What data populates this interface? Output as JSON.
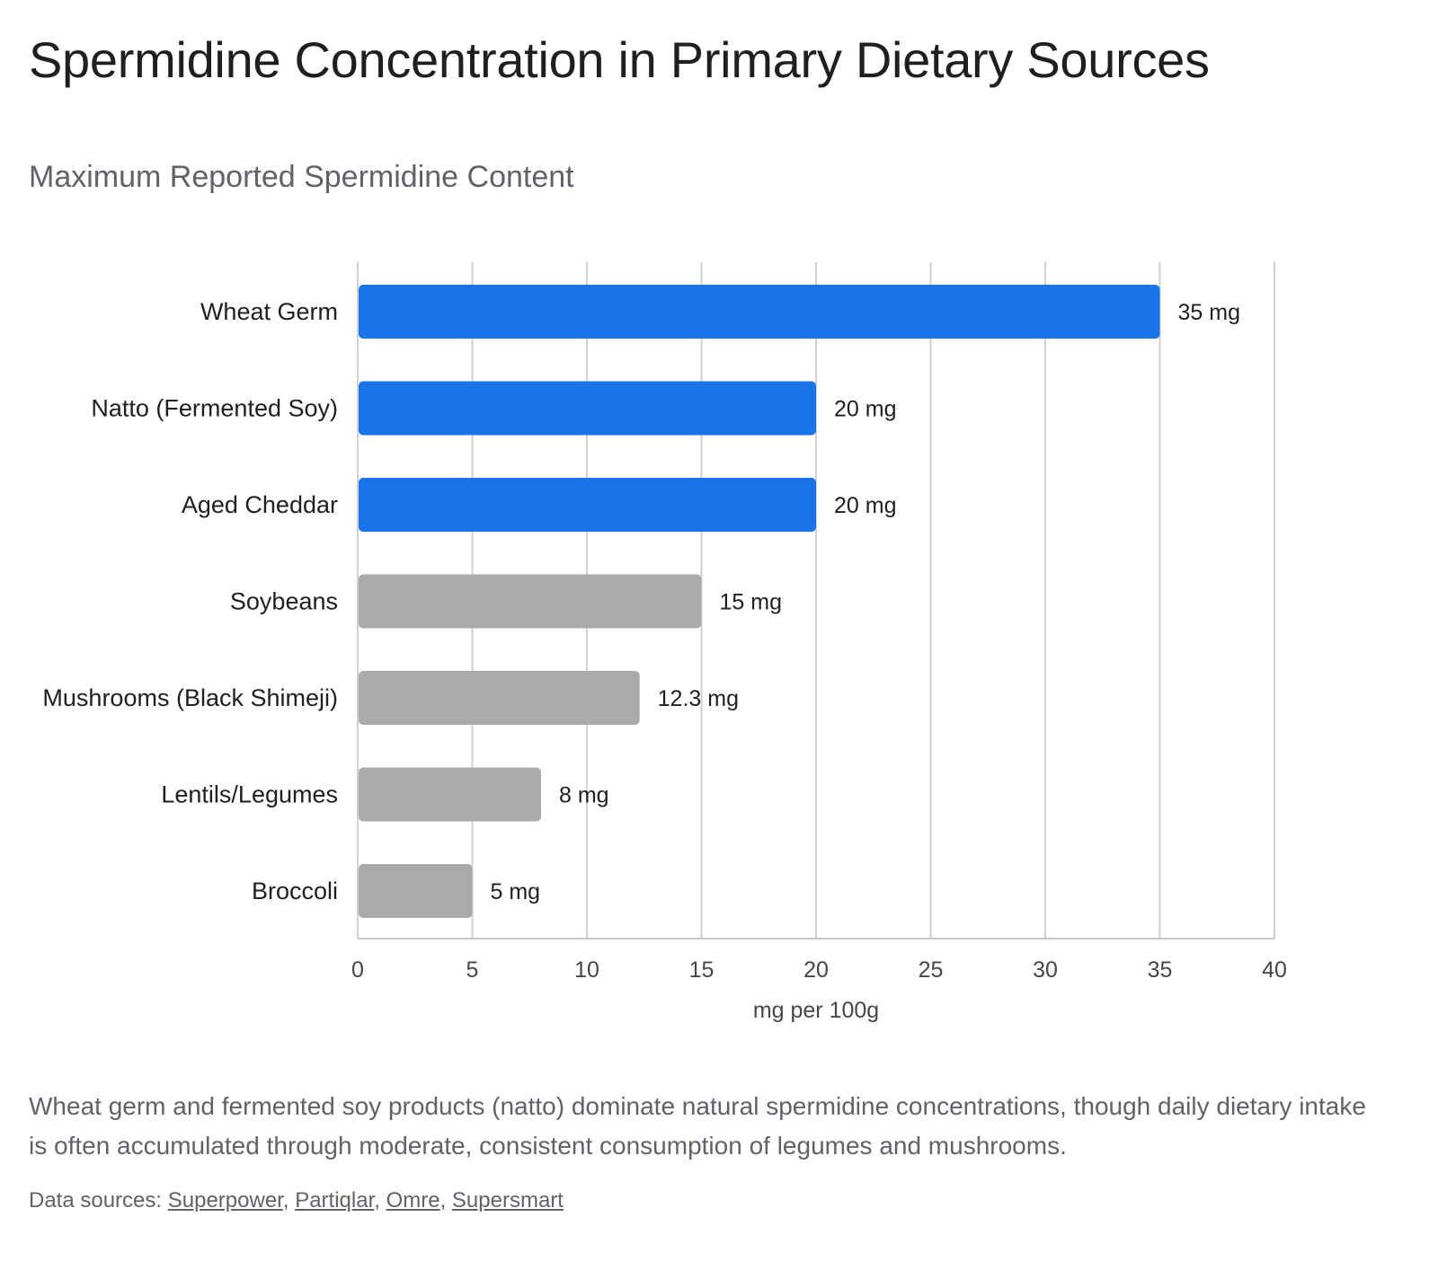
{
  "header": {
    "title": "Spermidine Concentration in Primary Dietary Sources",
    "subtitle": "Maximum Reported Spermidine Content"
  },
  "chart_data": {
    "type": "bar",
    "orientation": "horizontal",
    "categories": [
      "Wheat Germ",
      "Natto (Fermented Soy)",
      "Aged Cheddar",
      "Soybeans",
      "Mushrooms (Black Shimeji)",
      "Lentils/Legumes",
      "Broccoli"
    ],
    "values": [
      35,
      20,
      20,
      15,
      12.3,
      8,
      5
    ],
    "value_labels": [
      "35 mg",
      "20 mg",
      "20 mg",
      "15 mg",
      "12.3 mg",
      "8 mg",
      "5 mg"
    ],
    "highlighted": [
      true,
      true,
      true,
      false,
      false,
      false,
      false
    ],
    "colors": {
      "highlight": "#1a73e8",
      "default": "#aaaaaa",
      "grid": "#d0d0d0"
    },
    "xlabel": "mg per 100g",
    "xlim": [
      0,
      40
    ],
    "xticks": [
      0,
      5,
      10,
      15,
      20,
      25,
      30,
      35,
      40
    ],
    "grid": true
  },
  "footer": {
    "caption": "Wheat germ and fermented soy products (natto) dominate natural spermidine concentrations, though daily dietary intake is often accumulated through moderate, consistent consumption of legumes and mushrooms.",
    "sources_prefix": "Data sources:",
    "sources": [
      "Superpower",
      "Partiqlar",
      "Omre",
      "Supersmart"
    ]
  }
}
